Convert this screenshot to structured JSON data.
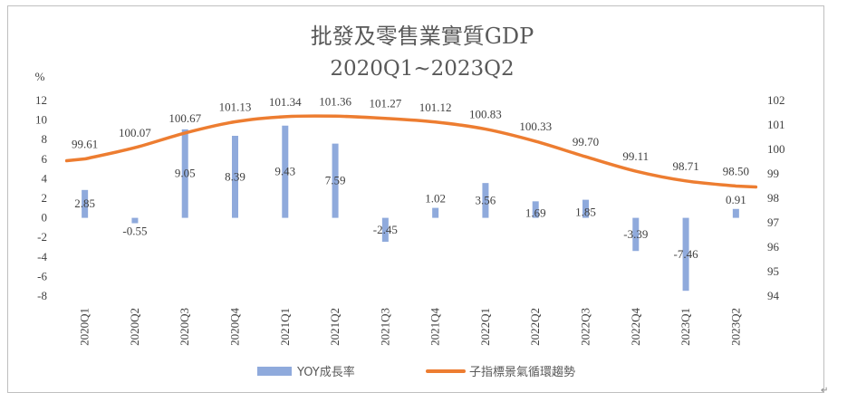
{
  "chart_data": {
    "type": "bar+line",
    "title": "批發及零售業實質GDP",
    "subtitle": "2020Q1~2023Q2",
    "y_left_unit": "%",
    "categories": [
      "2020Q1",
      "2020Q2",
      "2020Q3",
      "2020Q4",
      "2021Q1",
      "2021Q2",
      "2021Q3",
      "2021Q4",
      "2022Q1",
      "2022Q2",
      "2022Q3",
      "2022Q4",
      "2023Q1",
      "2023Q2"
    ],
    "series": [
      {
        "name": "YOY成長率",
        "type": "bar",
        "axis": "left",
        "color": "#8faadc",
        "values": [
          2.85,
          -0.55,
          9.05,
          8.39,
          9.43,
          7.59,
          -2.45,
          1.02,
          3.56,
          1.69,
          1.85,
          -3.39,
          -7.46,
          0.91
        ],
        "labels": [
          "2.85",
          "-0.55",
          "9.05",
          "8.39",
          "9.43",
          "7.59",
          "-2.45",
          "1.02",
          "3.56",
          "1.69",
          "1.85",
          "-3.39",
          "-7.46",
          "0.91"
        ]
      },
      {
        "name": "子指標景氣循環趨勢",
        "type": "line",
        "axis": "right",
        "color": "#ed7d31",
        "values": [
          99.61,
          100.07,
          100.67,
          101.13,
          101.34,
          101.36,
          101.27,
          101.12,
          100.83,
          100.33,
          99.7,
          99.11,
          98.71,
          98.5
        ],
        "labels": [
          "99.61",
          "100.07",
          "100.67",
          "101.13",
          "101.34",
          "101.36",
          "101.27",
          "101.12",
          "100.83",
          "100.33",
          "99.70",
          "99.11",
          "98.71",
          "98.50"
        ]
      }
    ],
    "y_left": {
      "min": -8,
      "max": 12,
      "step": 2,
      "ticks": [
        "-8",
        "-6",
        "-4",
        "-2",
        "0",
        "2",
        "4",
        "6",
        "8",
        "10",
        "12"
      ]
    },
    "y_right": {
      "min": 94,
      "max": 102,
      "step": 1,
      "ticks": [
        "94",
        "95",
        "96",
        "97",
        "98",
        "99",
        "100",
        "101",
        "102"
      ]
    },
    "grid": false,
    "legend_position": "bottom"
  }
}
